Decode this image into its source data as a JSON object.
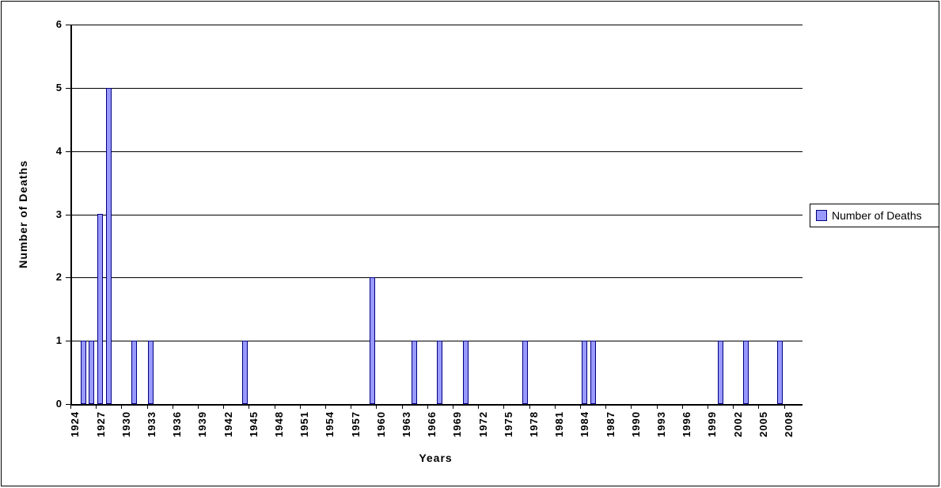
{
  "chart_data": {
    "type": "bar",
    "title": "",
    "xlabel": "Years",
    "ylabel": "Number of Deaths",
    "legend": [
      {
        "label": "Number of Deaths"
      }
    ],
    "legend_position": "right",
    "grid": true,
    "x_axis": {
      "first_category": 1924,
      "last_category": 2009,
      "tick_label_interval": 3,
      "tick_labels": [
        "1924",
        "1927",
        "1930",
        "1933",
        "1936",
        "1939",
        "1942",
        "1945",
        "1948",
        "1951",
        "1954",
        "1957",
        "1960",
        "1963",
        "1966",
        "1969",
        "1972",
        "1975",
        "1978",
        "1981",
        "1984",
        "1987",
        "1990",
        "1993",
        "1996",
        "1999",
        "2002",
        "2005",
        "2008"
      ]
    },
    "y_axis": {
      "min": 0,
      "max": 6,
      "interval": 1,
      "tick_labels": [
        "6",
        "5",
        "4",
        "3",
        "2",
        "1",
        "0"
      ]
    },
    "series": [
      {
        "name": "Number of Deaths",
        "default_value": 0,
        "values_by_year": {
          "1925": 1,
          "1926": 1,
          "1927": 3,
          "1928": 5,
          "1931": 1,
          "1933": 1,
          "1944": 1,
          "1959": 2,
          "1964": 1,
          "1967": 1,
          "1970": 1,
          "1977": 1,
          "1984": 1,
          "1985": 1,
          "2000": 1,
          "2003": 1,
          "2007": 1
        }
      }
    ],
    "colors": {
      "bar_fill": "#9999FF",
      "bar_border": "#000080",
      "gridline": "#000000",
      "axis": "#000000",
      "background": "#FFFFFF"
    }
  }
}
